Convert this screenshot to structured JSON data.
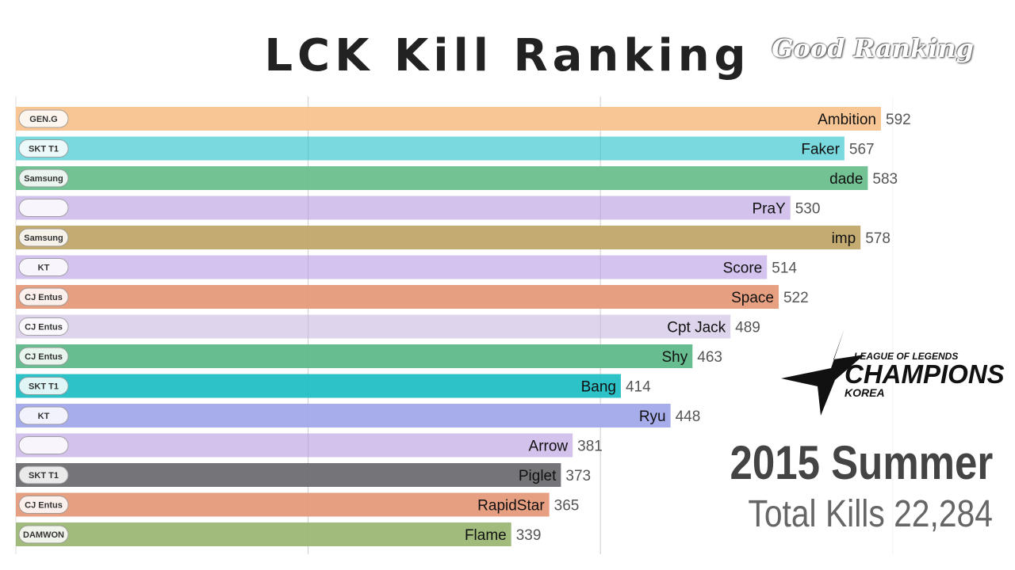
{
  "header": {
    "title": "LCK Kill Ranking",
    "brand": "Good Ranking"
  },
  "overlay": {
    "season": "2015 Summer",
    "total_label": "Total Kills",
    "total_value": "22,284",
    "logo_line1": "LEAGUE OF LEGENDS",
    "logo_line2": "CHAMPIONS",
    "logo_line3": "KOREA"
  },
  "chart_data": {
    "type": "bar",
    "orientation": "horizontal",
    "title": "LCK Kill Ranking",
    "xlim": [
      0,
      620
    ],
    "grid": true,
    "gridlines": [
      200,
      400,
      600
    ],
    "bars": [
      {
        "name": "Ambition",
        "value": 592,
        "team": "GEN.G",
        "color": "#f8c38f",
        "faded": false
      },
      {
        "name": "Faker",
        "value": 567,
        "team": "SKT T1",
        "color": "#22bfc8",
        "faded": true
      },
      {
        "name": "dade",
        "value": 583,
        "team": "Samsung",
        "color": "#6cbf8e",
        "faded": false
      },
      {
        "name": "PraY",
        "value": 530,
        "team": "",
        "color": "#b59be0",
        "faded": true
      },
      {
        "name": "imp",
        "value": 578,
        "team": "Samsung",
        "color": "#c0a66a",
        "faded": false
      },
      {
        "name": "Score",
        "value": 514,
        "team": "KT",
        "color": "#b89be3",
        "faded": true
      },
      {
        "name": "Space",
        "value": 522,
        "team": "CJ Entus",
        "color": "#e59a7a",
        "faded": false
      },
      {
        "name": "Cpt Jack",
        "value": 489,
        "team": "CJ Entus",
        "color": "#c8b8e0",
        "faded": true
      },
      {
        "name": "Shy",
        "value": 463,
        "team": "CJ Entus",
        "color": "#5fb88a",
        "faded": false
      },
      {
        "name": "Bang",
        "value": 414,
        "team": "SKT T1",
        "color": "#22bfc5",
        "faded": false
      },
      {
        "name": "Ryu",
        "value": 448,
        "team": "KT",
        "color": "#a2a8ea",
        "faded": false
      },
      {
        "name": "Arrow",
        "value": 381,
        "team": "",
        "color": "#b59be0",
        "faded": true
      },
      {
        "name": "Piglet",
        "value": 373,
        "team": "SKT T1",
        "color": "#6e6e72",
        "faded": false
      },
      {
        "name": "RapidStar",
        "value": 365,
        "team": "CJ Entus",
        "color": "#e59a7a",
        "faded": false
      },
      {
        "name": "Flame",
        "value": 339,
        "team": "DAMWON",
        "color": "#9cb775",
        "faded": false
      }
    ]
  }
}
